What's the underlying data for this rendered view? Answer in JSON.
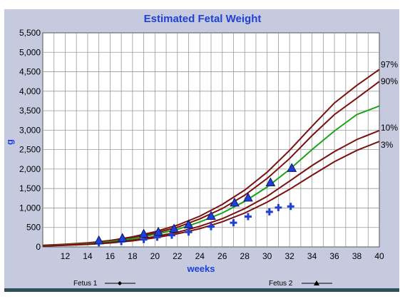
{
  "chart_data": {
    "type": "line",
    "title": "Estimated Fetal Weight",
    "xlabel": "weeks",
    "ylabel": "g",
    "xlim": [
      10,
      40
    ],
    "ylim": [
      0,
      5500
    ],
    "x_ticks": [
      12,
      14,
      16,
      18,
      20,
      22,
      24,
      26,
      28,
      30,
      32,
      34,
      36,
      38,
      40
    ],
    "y_ticks": [
      0,
      500,
      1000,
      1500,
      2000,
      2500,
      3000,
      3500,
      4000,
      4500,
      5000,
      5500
    ],
    "y_tick_labels": [
      "0",
      "500",
      "1,000",
      "1,500",
      "2,000",
      "2,500",
      "3,000",
      "3,500",
      "4,000",
      "4,500",
      "5,000",
      "5,500"
    ],
    "grid": true,
    "percentile_curves": [
      {
        "label": "97%",
        "color": "#7a1010",
        "x": [
          10,
          12,
          14,
          16,
          18,
          20,
          22,
          24,
          26,
          28,
          30,
          32,
          34,
          36,
          38,
          40
        ],
        "values": [
          40,
          70,
          105,
          165,
          260,
          390,
          560,
          790,
          1090,
          1460,
          1920,
          2480,
          3100,
          3700,
          4150,
          4560
        ]
      },
      {
        "label": "90%",
        "color": "#7a1010",
        "x": [
          10,
          12,
          14,
          16,
          18,
          20,
          22,
          24,
          26,
          28,
          30,
          32,
          34,
          36,
          38,
          40
        ],
        "values": [
          35,
          62,
          95,
          150,
          235,
          355,
          505,
          720,
          985,
          1330,
          1760,
          2270,
          2860,
          3400,
          3820,
          4250
        ]
      },
      {
        "label": "",
        "color": "#1aa319",
        "x": [
          10,
          12,
          14,
          16,
          18,
          20,
          22,
          24,
          26,
          28,
          30,
          32,
          34,
          36,
          38,
          40
        ],
        "values": [
          30,
          55,
          85,
          135,
          210,
          320,
          450,
          640,
          870,
          1170,
          1540,
          1990,
          2500,
          2980,
          3400,
          3620
        ]
      },
      {
        "label": "10%",
        "color": "#7a1010",
        "x": [
          10,
          12,
          14,
          16,
          18,
          20,
          22,
          24,
          26,
          28,
          30,
          32,
          34,
          36,
          38,
          40
        ],
        "values": [
          24,
          48,
          72,
          112,
          175,
          265,
          375,
          530,
          725,
          985,
          1300,
          1690,
          2090,
          2450,
          2760,
          2990
        ]
      },
      {
        "label": "3%",
        "color": "#7a1010",
        "x": [
          10,
          12,
          14,
          16,
          18,
          20,
          22,
          24,
          26,
          28,
          30,
          32,
          34,
          36,
          38,
          40
        ],
        "values": [
          20,
          42,
          65,
          100,
          155,
          235,
          335,
          470,
          645,
          870,
          1150,
          1480,
          1840,
          2190,
          2480,
          2710
        ]
      }
    ],
    "series": [
      {
        "name": "Fetus 1",
        "marker": "plus",
        "color": "#1f3fd6",
        "x": [
          15,
          17,
          19,
          20.2,
          21.5,
          23,
          25,
          27,
          28.3,
          30.2,
          31,
          32.1
        ],
        "values": [
          105,
          140,
          190,
          250,
          300,
          380,
          520,
          620,
          780,
          900,
          1010,
          1040
        ]
      },
      {
        "name": "Fetus 2",
        "marker": "triangle",
        "color": "#1f3fd6",
        "x": [
          15,
          17.1,
          19,
          20.3,
          21.7,
          23,
          25,
          27.1,
          28.3,
          30.3,
          32.2
        ],
        "values": [
          150,
          210,
          320,
          370,
          450,
          560,
          780,
          1120,
          1250,
          1640,
          2010
        ]
      }
    ],
    "legend_position": "bottom"
  }
}
